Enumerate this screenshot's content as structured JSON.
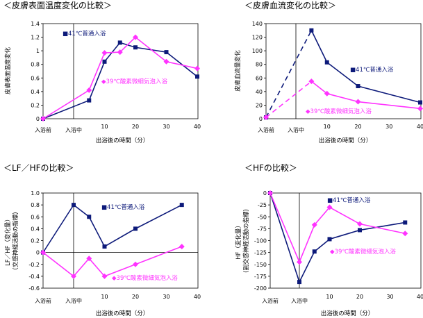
{
  "colors": {
    "navy": "#0d1a7a",
    "magenta": "#ff33ff"
  },
  "chart_data": [
    {
      "type": "line",
      "title": "＜皮膚表面温度変化の比較＞",
      "ylabel": "皮膚表面温度変化",
      "xlabel": "出浴後の時間（分）",
      "ylim": [
        0,
        1.4
      ],
      "ytick_step": 0.2,
      "ytick_decimals": 1,
      "yticks_shown": [
        0,
        0.2,
        0.4,
        0.6,
        0.8,
        1,
        1.2,
        1.4
      ],
      "category_labels": [
        "入浴前",
        "入浴中"
      ],
      "minute_ticks": [
        10,
        20,
        30,
        40
      ],
      "series": [
        {
          "name": "■41℃普通入浴",
          "color": "#0d1a7a",
          "marker": "square",
          "dashed_segments": [],
          "x": [
            "入浴前",
            5,
            10,
            15,
            20,
            30,
            40
          ],
          "values": [
            0,
            0.27,
            0.84,
            1.12,
            1.05,
            0.98,
            0.62
          ]
        },
        {
          "name": "◆39℃酸素微細気泡入浴",
          "color": "#ff33ff",
          "marker": "diamond",
          "dashed_segments": [],
          "x": [
            "入浴前",
            5,
            10,
            15,
            20,
            30,
            40
          ],
          "values": [
            0,
            0.42,
            0.97,
            0.98,
            1.2,
            0.84,
            0.74
          ]
        }
      ]
    },
    {
      "type": "line",
      "title": "＜皮膚血流変化の比較＞",
      "ylabel": "皮膚血流量変化",
      "xlabel": "出浴後の時間（分）",
      "ylim": [
        0,
        140
      ],
      "ytick_step": 20,
      "ytick_decimals": 0,
      "category_labels": [
        "入浴前",
        "入浴中"
      ],
      "minute_ticks": [
        10,
        20,
        30,
        40
      ],
      "series": [
        {
          "name": "■41℃普通入浴",
          "color": "#0d1a7a",
          "marker": "square",
          "dashed_segments": [
            0
          ],
          "x": [
            "入浴前",
            5,
            10,
            20,
            40
          ],
          "values": [
            2,
            130,
            83,
            48,
            24
          ]
        },
        {
          "name": "◆39℃酸素微細気泡入浴",
          "color": "#ff33ff",
          "marker": "diamond",
          "dashed_segments": [
            0
          ],
          "x": [
            "入浴前",
            5,
            10,
            20,
            40
          ],
          "values": [
            2,
            55,
            37,
            25,
            15
          ]
        }
      ]
    },
    {
      "type": "line",
      "title": "＜LF／HFの比較＞",
      "ylabel": "LF／HF（変化量）",
      "ylabel2": "(交感神経活動の指標)",
      "xlabel": "出浴後の時間（分）",
      "ylim": [
        -0.6,
        1
      ],
      "ytick_step": 0.2,
      "ytick_decimals": 1,
      "category_labels": [
        "入浴前",
        "入浴中"
      ],
      "minute_ticks": [
        10,
        20,
        30,
        40
      ],
      "series": [
        {
          "name": "■41℃普通入浴",
          "color": "#0d1a7a",
          "marker": "square",
          "dashed_segments": [],
          "x": [
            "入浴前",
            "入浴中",
            5,
            10,
            20,
            35
          ],
          "values": [
            0,
            0.8,
            0.6,
            0.1,
            0.4,
            0.8
          ]
        },
        {
          "name": "◆39℃酸素微細気泡入浴",
          "color": "#ff33ff",
          "marker": "diamond",
          "dashed_segments": [],
          "x": [
            "入浴前",
            "入浴中",
            5,
            10,
            20,
            35
          ],
          "values": [
            0,
            -0.4,
            -0.1,
            -0.4,
            -0.2,
            0.1
          ]
        }
      ]
    },
    {
      "type": "line",
      "title": "＜HFの比較＞",
      "ylabel": "HF（変化量）",
      "ylabel2": "(副交感神経活動の指標)",
      "xlabel": "出浴後の時間（分）",
      "ylim": [
        -200,
        0
      ],
      "ytick_step": 25,
      "ytick_decimals": 0,
      "category_labels": [
        "入浴前",
        "入浴中"
      ],
      "minute_ticks": [
        10,
        20,
        30,
        40
      ],
      "series": [
        {
          "name": "■41℃普通入浴",
          "color": "#0d1a7a",
          "marker": "square",
          "dashed_segments": [],
          "x": [
            "入浴前",
            "入浴中",
            5,
            10,
            20,
            35
          ],
          "values": [
            0,
            -187,
            -123,
            -97,
            -78,
            -62
          ]
        },
        {
          "name": "◆39℃酸素微細気泡入浴",
          "color": "#ff33ff",
          "marker": "diamond",
          "dashed_segments": [],
          "x": [
            "入浴前",
            "入浴中",
            5,
            10,
            20,
            35
          ],
          "values": [
            0,
            -145,
            -67,
            -30,
            -65,
            -85
          ]
        }
      ]
    }
  ]
}
